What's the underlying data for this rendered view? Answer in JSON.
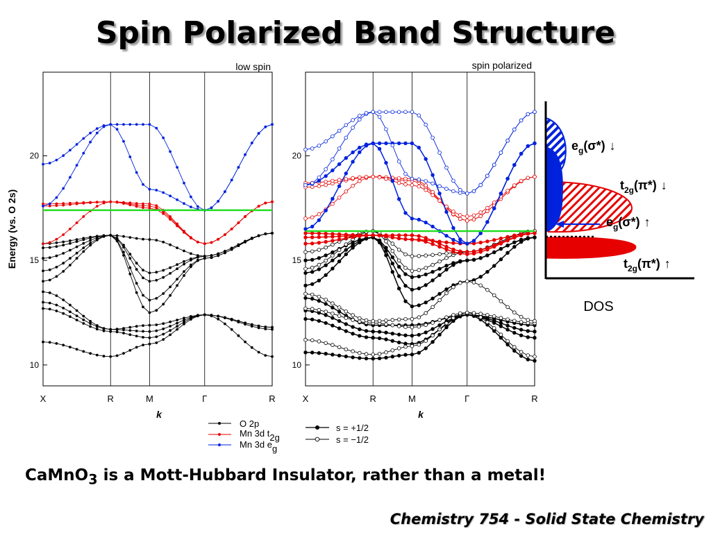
{
  "slide": {
    "title": "Spin Polarized Band Structure",
    "caption_text_1": "CaMnO",
    "caption_sub": "3",
    "caption_text_2": " is a Mott-Hubbard Insulator, rather than a metal!",
    "footer": "Chemistry 754 - Solid State Chemistry"
  },
  "colors": {
    "o2p": "#000000",
    "t2g": "#e60000",
    "eg": "#0022dd",
    "fermi": "#22dd22"
  },
  "chart_data": [
    {
      "type": "line",
      "title": "low spin",
      "ylabel": "Energy (vs. O 2s)",
      "xlabel": "k",
      "ylim": [
        9,
        24
      ],
      "yticks": [
        10,
        15,
        20
      ],
      "kpoints": [
        "X",
        "R",
        "M",
        "Γ",
        "R"
      ],
      "kpos": [
        0,
        0.866,
        1.366,
        2.073,
        2.939
      ],
      "fermi_level": 17.4,
      "series": [
        {
          "group": "o2p",
          "values": [
            11.1,
            10.4,
            11.0,
            12.4,
            10.4
          ]
        },
        {
          "group": "o2p",
          "values": [
            12.7,
            11.6,
            11.3,
            12.4,
            11.7
          ]
        },
        {
          "group": "o2p",
          "values": [
            13.0,
            11.7,
            11.6,
            12.4,
            11.8
          ]
        },
        {
          "group": "o2p",
          "values": [
            13.5,
            11.7,
            11.9,
            12.4,
            11.8
          ]
        },
        {
          "group": "o2p",
          "values": [
            14.0,
            16.2,
            12.5,
            15.1,
            16.3
          ]
        },
        {
          "group": "o2p",
          "values": [
            14.5,
            16.2,
            13.1,
            15.1,
            16.3
          ]
        },
        {
          "group": "o2p",
          "values": [
            15.1,
            16.2,
            14.0,
            15.2,
            16.3
          ]
        },
        {
          "group": "o2p",
          "values": [
            15.6,
            16.2,
            14.4,
            15.2,
            16.3
          ]
        },
        {
          "group": "o2p",
          "values": [
            15.8,
            16.2,
            16.0,
            15.2,
            16.3
          ]
        },
        {
          "group": "t2g",
          "values": [
            15.8,
            17.8,
            17.5,
            15.8,
            17.8
          ]
        },
        {
          "group": "t2g",
          "values": [
            17.6,
            17.8,
            17.6,
            15.8,
            17.8
          ]
        },
        {
          "group": "t2g",
          "values": [
            17.7,
            17.8,
            17.7,
            15.8,
            17.8
          ]
        },
        {
          "group": "eg",
          "values": [
            17.6,
            21.5,
            18.4,
            17.4,
            21.5
          ]
        },
        {
          "group": "eg",
          "values": [
            19.6,
            21.5,
            21.5,
            17.4,
            21.5
          ]
        }
      ]
    },
    {
      "type": "line",
      "title": "spin polarized",
      "xlabel": "k",
      "ylim": [
        9,
        24
      ],
      "yticks": [
        10,
        15,
        20
      ],
      "kpoints": [
        "X",
        "R",
        "M",
        "Γ",
        "R"
      ],
      "kpos": [
        0,
        0.866,
        1.366,
        2.073,
        2.939
      ],
      "fermi_level": 16.4,
      "series": [
        {
          "group": "o2p",
          "spin": "up",
          "values": [
            10.6,
            10.3,
            10.5,
            12.4,
            10.2
          ]
        },
        {
          "group": "o2p",
          "spin": "up",
          "values": [
            12.2,
            11.3,
            11.0,
            12.4,
            11.3
          ]
        },
        {
          "group": "o2p",
          "spin": "up",
          "values": [
            12.6,
            11.6,
            11.4,
            12.4,
            11.6
          ]
        },
        {
          "group": "o2p",
          "spin": "up",
          "values": [
            13.2,
            11.9,
            11.9,
            12.4,
            11.9
          ]
        },
        {
          "group": "o2p",
          "spin": "up",
          "values": [
            13.8,
            16.1,
            12.8,
            14.0,
            16.1
          ]
        },
        {
          "group": "o2p",
          "spin": "up",
          "values": [
            14.4,
            16.1,
            13.6,
            15.0,
            16.1
          ]
        },
        {
          "group": "o2p",
          "spin": "up",
          "values": [
            15.0,
            16.1,
            14.2,
            15.0,
            16.1
          ]
        },
        {
          "group": "o2p",
          "spin": "down",
          "values": [
            11.2,
            10.5,
            10.9,
            12.5,
            10.4
          ]
        },
        {
          "group": "o2p",
          "spin": "down",
          "values": [
            12.7,
            12.0,
            11.8,
            12.5,
            12.0
          ]
        },
        {
          "group": "o2p",
          "spin": "down",
          "values": [
            13.4,
            12.1,
            12.2,
            14.0,
            12.1
          ]
        },
        {
          "group": "o2p",
          "spin": "down",
          "values": [
            14.6,
            16.4,
            14.5,
            15.4,
            16.4
          ]
        },
        {
          "group": "o2p",
          "spin": "down",
          "values": [
            15.4,
            16.4,
            15.2,
            15.4,
            16.4
          ]
        },
        {
          "group": "t2g",
          "spin": "up",
          "values": [
            16.3,
            16.2,
            16.0,
            15.3,
            16.3
          ]
        },
        {
          "group": "t2g",
          "spin": "up",
          "values": [
            15.8,
            16.2,
            16.0,
            15.8,
            16.3
          ]
        },
        {
          "group": "t2g",
          "spin": "up",
          "values": [
            16.1,
            16.2,
            16.2,
            15.4,
            16.3
          ]
        },
        {
          "group": "t2g",
          "spin": "down",
          "values": [
            17.0,
            19.0,
            18.8,
            16.9,
            19.0
          ]
        },
        {
          "group": "t2g",
          "spin": "down",
          "values": [
            18.5,
            19.0,
            18.9,
            16.9,
            19.0
          ]
        },
        {
          "group": "t2g",
          "spin": "down",
          "values": [
            18.7,
            19.0,
            18.6,
            17.1,
            19.0
          ]
        },
        {
          "group": "eg",
          "spin": "up",
          "values": [
            16.5,
            20.6,
            17.0,
            15.8,
            20.6
          ]
        },
        {
          "group": "eg",
          "spin": "up",
          "values": [
            18.6,
            20.6,
            20.6,
            15.8,
            20.6
          ]
        },
        {
          "group": "eg",
          "spin": "down",
          "values": [
            18.6,
            22.1,
            18.9,
            18.2,
            22.1
          ]
        },
        {
          "group": "eg",
          "spin": "down",
          "values": [
            20.3,
            22.1,
            22.1,
            18.2,
            22.1
          ]
        }
      ]
    }
  ],
  "legend": {
    "o2p": "O 2p",
    "t2g_main": "Mn 3d t",
    "t2g_sub": "2g",
    "eg_main": "Mn 3d e",
    "eg_sub": "g",
    "spin_up": "s = +1/2",
    "spin_down": "s = −1/2"
  },
  "dos": {
    "label": "DOS",
    "eg_down": {
      "main": "e",
      "sub": "g",
      "paren": "(σ*)",
      "arrow": "↓"
    },
    "t2g_down": {
      "main": "t",
      "sub": "2g",
      "paren": "(π*)",
      "arrow": "↓"
    },
    "eg_up": {
      "main": "e",
      "sub": "g",
      "paren": "(σ*)",
      "arrow": "↑"
    },
    "t2g_up": {
      "main": "t",
      "sub": "2g",
      "paren": "(π*)",
      "arrow": "↑"
    }
  }
}
